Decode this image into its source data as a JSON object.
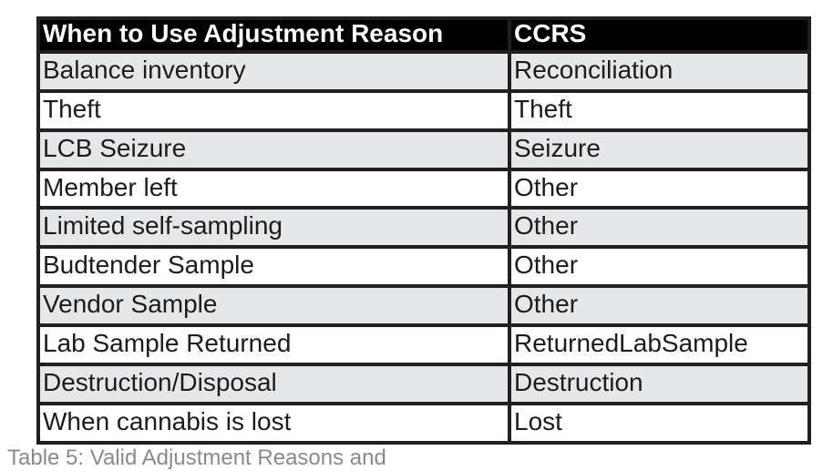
{
  "table": {
    "columns": [
      "When to Use Adjustment Reason",
      "CCRS"
    ],
    "rows": [
      [
        "Balance inventory",
        "Reconciliation"
      ],
      [
        "Theft",
        "Theft"
      ],
      [
        "LCB Seizure",
        "Seizure"
      ],
      [
        "Member left",
        "Other"
      ],
      [
        "Limited self-sampling",
        "Other"
      ],
      [
        "Budtender Sample",
        "Other"
      ],
      [
        "Vendor Sample",
        "Other"
      ],
      [
        "Lab Sample Returned",
        "ReturnedLabSample"
      ],
      [
        "Destruction/Disposal",
        "Destruction"
      ],
      [
        "When cannabis is lost",
        "Lost"
      ]
    ],
    "caption_partial": "Table 5: Valid Adjustment Reasons and"
  },
  "colors": {
    "header_bg": "#000000",
    "header_text": "#ffffff",
    "row_alt_bg": "#e6e7e8",
    "row_bg": "#ffffff",
    "border": "#231f20",
    "body_text": "#1c1c1c"
  }
}
